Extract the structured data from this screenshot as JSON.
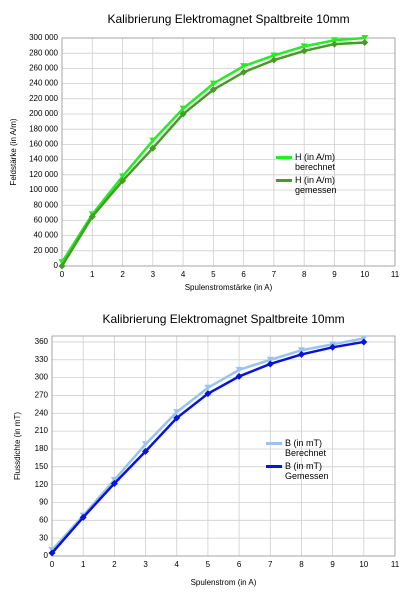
{
  "chart_data": [
    {
      "type": "line",
      "title": "Kalibrierung Elektromagnet Spaltbreite 10mm",
      "x_label": "Spulenstromstärke (in A)",
      "y_label": "Feldstärke (in A/m)",
      "x": [
        0,
        1,
        2,
        3,
        4,
        5,
        6,
        7,
        8,
        9,
        10
      ],
      "series": [
        {
          "name": "H (in A/m) berechnet",
          "color": "#22ee22",
          "marker": "triangle",
          "values": [
            5000,
            68000,
            118000,
            165000,
            207000,
            240000,
            263000,
            277000,
            289000,
            297000,
            300000
          ]
        },
        {
          "name": "H (in A/m) gemessen",
          "color": "#4a9a28",
          "marker": "diamond",
          "values": [
            0,
            65000,
            112000,
            155000,
            200000,
            232000,
            255000,
            271000,
            283000,
            292000,
            294000
          ]
        }
      ],
      "xlim": [
        0,
        11
      ],
      "xticks": [
        0,
        1,
        2,
        3,
        4,
        5,
        6,
        7,
        8,
        9,
        10,
        11
      ],
      "ylim": [
        0,
        300000
      ],
      "yticks": [
        0,
        {
          "value": 20000,
          "label": "20 000"
        },
        {
          "value": 40000,
          "label": "40 000"
        },
        {
          "value": 60000,
          "label": "60 000"
        },
        {
          "value": 80000,
          "label": "80 000"
        },
        {
          "value": 100000,
          "label": "100 000"
        },
        {
          "value": 120000,
          "label": "120 000"
        },
        {
          "value": 140000,
          "label": "140 000"
        },
        {
          "value": 160000,
          "label": "160 000"
        },
        {
          "value": 180000,
          "label": "180 000"
        },
        {
          "value": 200000,
          "label": "200 000"
        },
        {
          "value": 220000,
          "label": "220 000"
        },
        {
          "value": 240000,
          "label": "240 000"
        },
        {
          "value": 260000,
          "label": "260 000"
        },
        {
          "value": 280000,
          "label": "280 000"
        },
        {
          "value": 300000,
          "label": "300 000"
        }
      ],
      "grid": true
    },
    {
      "type": "line",
      "title": "Kalibrierung Elektromagnet Spaltbreite 10mm",
      "x_label": "Spulenstrom (in A)",
      "y_label": "Flussdichte (in mT)",
      "x": [
        0,
        1,
        2,
        3,
        4,
        5,
        6,
        7,
        8,
        9,
        10
      ],
      "series": [
        {
          "name": "B (in mT) Berechnet",
          "color": "#99c4f0",
          "marker": "triangle",
          "values": [
            10,
            68,
            128,
            188,
            242,
            283,
            313,
            330,
            346,
            356,
            366
          ]
        },
        {
          "name": "B (in mT) Gemessen",
          "color": "#0a14d8",
          "marker": "diamond",
          "values": [
            5,
            65,
            122,
            176,
            232,
            273,
            302,
            323,
            339,
            351,
            360
          ]
        }
      ],
      "xlim": [
        0,
        11
      ],
      "xticks": [
        0,
        1,
        2,
        3,
        4,
        5,
        6,
        7,
        8,
        9,
        10,
        11
      ],
      "ylim": [
        0,
        370
      ],
      "yticks": [
        0,
        30,
        60,
        90,
        120,
        150,
        180,
        210,
        240,
        270,
        300,
        330,
        360
      ],
      "grid": true
    }
  ]
}
